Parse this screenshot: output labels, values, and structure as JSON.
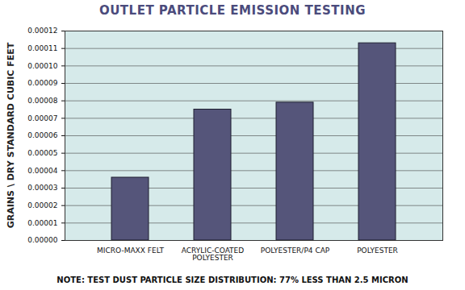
{
  "chart_data": {
    "type": "bar",
    "title": "OUTLET PARTICLE EMISSION TESTING",
    "y_label": "GRAINS \\ DRY STANDARD CUBIC FEET",
    "caption": "NOTE: TEST DUST PARTICLE SIZE DISTRIBUTION: 77% LESS THAN 2.5 MICRON",
    "categories": [
      "MICRO-MAXX FELT",
      "ACRYLIC-COATED POLYESTER",
      "POLYESTER/P4 CAP",
      "POLYESTER"
    ],
    "values": [
      3.6e-05,
      7.5e-05,
      7.9e-05,
      0.000113
    ],
    "color": "#55557a",
    "ylim": [
      0,
      0.00012
    ],
    "yticks": [
      {
        "value": 0,
        "label": "0.00000"
      },
      {
        "value": 1e-05,
        "label": "0.00001"
      },
      {
        "value": 2e-05,
        "label": "0.00002"
      },
      {
        "value": 3e-05,
        "label": "0.00003"
      },
      {
        "value": 4e-05,
        "label": "0.00004"
      },
      {
        "value": 5e-05,
        "label": "0.00005"
      },
      {
        "value": 6e-05,
        "label": "0.00006"
      },
      {
        "value": 7e-05,
        "label": "0.00007"
      },
      {
        "value": 8e-05,
        "label": "0.00008"
      },
      {
        "value": 9e-05,
        "label": "0.00009"
      },
      {
        "value": 0.0001,
        "label": "0.00010"
      },
      {
        "value": 0.00011,
        "label": "0.00011"
      },
      {
        "value": 0.00012,
        "label": "0.00012"
      }
    ],
    "grid": true
  }
}
